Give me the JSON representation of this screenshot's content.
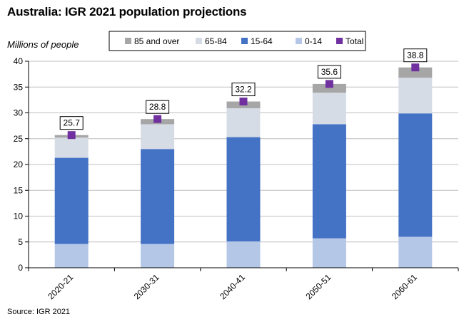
{
  "title": "Australia: IGR 2021 population projections",
  "source": "Source: IGR 2021",
  "colors": {
    "85 and over": "#a6a6a6",
    "65-84": "#d6dce5",
    "15-64": "#4472c4",
    "0-14": "#b4c7e7",
    "Total": "#7030a0",
    "grid": "#bfbfbf",
    "axis": "#000000"
  },
  "chart_data": {
    "type": "bar",
    "stacked": true,
    "title": "Australia: IGR 2021 population projections",
    "ylabel": "Millions of people",
    "xlabel": "",
    "ylim": [
      0,
      40
    ],
    "yticks": [
      0,
      5,
      10,
      15,
      20,
      25,
      30,
      35,
      40
    ],
    "grid": true,
    "legend_position": "top",
    "categories": [
      "2020-21",
      "2030-31",
      "2040-41",
      "2050-51",
      "2060-61"
    ],
    "legend": [
      "85 and over",
      "65-84",
      "15-64",
      "0-14",
      "Total"
    ],
    "series": [
      {
        "name": "0-14",
        "values": [
          4.6,
          4.6,
          5.1,
          5.7,
          6.0
        ]
      },
      {
        "name": "15-64",
        "values": [
          16.7,
          18.4,
          20.2,
          22.1,
          23.9
        ]
      },
      {
        "name": "65-84",
        "values": [
          3.9,
          4.8,
          5.6,
          6.1,
          6.9
        ]
      },
      {
        "name": "85 and over",
        "values": [
          0.5,
          1.0,
          1.3,
          1.7,
          2.0
        ]
      }
    ],
    "total": {
      "name": "Total",
      "values": [
        25.7,
        28.8,
        32.2,
        35.6,
        38.8
      ],
      "labels": [
        "25.7",
        "28.8",
        "32.2",
        "35.6",
        "38.8"
      ]
    }
  }
}
